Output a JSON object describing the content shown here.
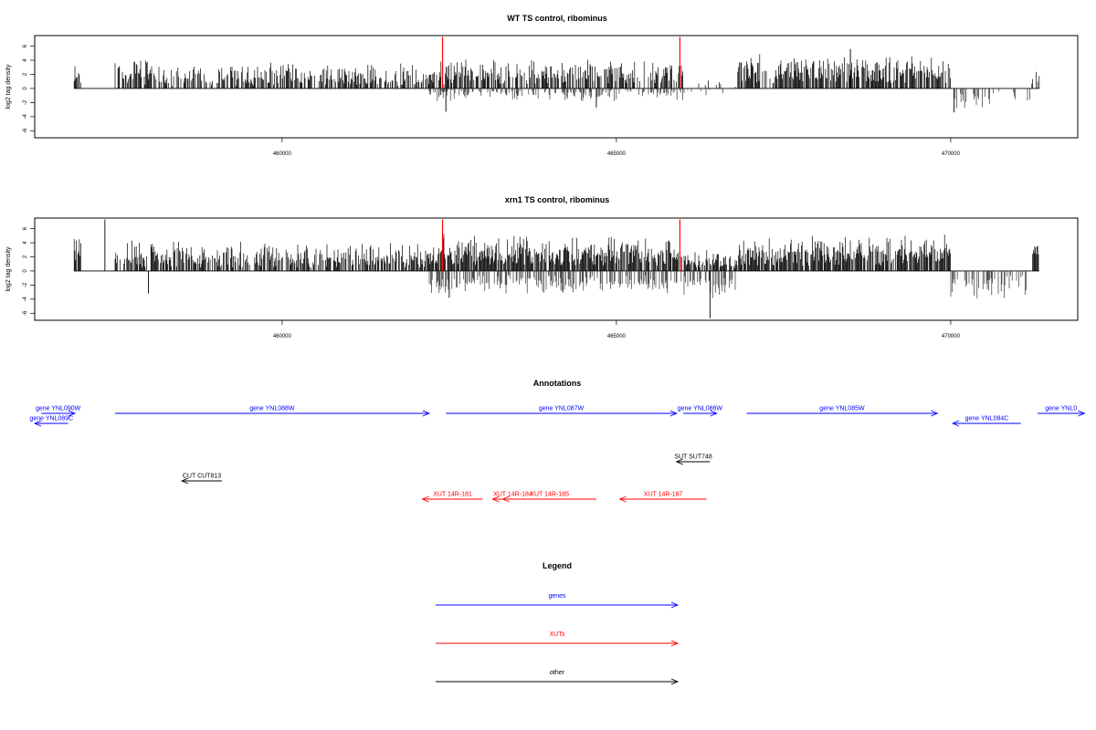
{
  "chart_data": [
    {
      "type": "bar",
      "title": "WT TS control, ribominus",
      "ylabel": "log2 tag density",
      "xlim": [
        456300,
        471900
      ],
      "ylim": [
        -7,
        7.5
      ],
      "yticks": [
        -6,
        -4,
        -2,
        0,
        2,
        4,
        6
      ],
      "xticks": [
        460000,
        465000,
        470000
      ],
      "grid": false,
      "markers": {
        "color": "#ff0000",
        "positions": [
          462400,
          465950
        ],
        "height": 7.3
      },
      "bar_color": "#000000",
      "segments": [
        {
          "start": 456300,
          "end": 457000,
          "base_pos": 1.3,
          "amp_pos": 2.6,
          "base_neg": 0,
          "amp_neg": 0,
          "density": 0.55
        },
        {
          "start": 457000,
          "end": 457500,
          "base_pos": 0,
          "amp_pos": 0,
          "base_neg": 0,
          "amp_neg": 0,
          "density": 0
        },
        {
          "start": 457500,
          "end": 458100,
          "base_pos": 1.8,
          "amp_pos": 2.8,
          "base_neg": 0,
          "amp_neg": 0,
          "density": 0.7
        },
        {
          "start": 458100,
          "end": 462200,
          "base_pos": 1.1,
          "amp_pos": 2.3,
          "base_neg": 0,
          "amp_neg": 0,
          "density": 0.62
        },
        {
          "start": 462200,
          "end": 466000,
          "base_pos": 1.6,
          "amp_pos": 2.5,
          "base_neg": 0.5,
          "amp_neg": 1.3,
          "density": 0.68
        },
        {
          "start": 466000,
          "end": 466800,
          "base_pos": 0.4,
          "amp_pos": 0.9,
          "base_neg": 0.5,
          "amp_neg": 0.6,
          "density": 0.15
        },
        {
          "start": 466800,
          "end": 470000,
          "base_pos": 2.2,
          "amp_pos": 2.3,
          "base_neg": 0,
          "amp_neg": 0,
          "density": 0.78
        },
        {
          "start": 470000,
          "end": 471200,
          "base_pos": 0,
          "amp_pos": 0,
          "base_neg": 1.2,
          "amp_neg": 1.4,
          "density": 0.45
        },
        {
          "start": 471200,
          "end": 471900,
          "base_pos": 1.4,
          "amp_pos": 1.1,
          "base_neg": 0,
          "amp_neg": 0,
          "density": 0.5
        }
      ],
      "peaks": [
        {
          "x": 470050,
          "y": -3.4
        },
        {
          "x": 462450,
          "y": -3.3
        },
        {
          "x": 464700,
          "y": -2.7
        },
        {
          "x": 468500,
          "y": 5.6
        }
      ]
    },
    {
      "type": "bar",
      "title": "xrn1 TS control, ribominus",
      "ylabel": "log2 tag density",
      "xlim": [
        456300,
        471900
      ],
      "ylim": [
        -7,
        7.5
      ],
      "yticks": [
        -6,
        -4,
        -2,
        0,
        2,
        4,
        6
      ],
      "xticks": [
        460000,
        465000,
        470000
      ],
      "grid": false,
      "markers": {
        "color": "#ff0000",
        "positions": [
          462400,
          465950
        ],
        "height": 7.3
      },
      "bar_color": "#000000",
      "segments": [
        {
          "start": 456300,
          "end": 457000,
          "base_pos": 2.6,
          "amp_pos": 3.0,
          "base_neg": 0,
          "amp_neg": 0,
          "density": 0.85
        },
        {
          "start": 457000,
          "end": 457500,
          "base_pos": 0,
          "amp_pos": 0,
          "base_neg": 0,
          "amp_neg": 0,
          "density": 0
        },
        {
          "start": 457500,
          "end": 462200,
          "base_pos": 1.5,
          "amp_pos": 2.6,
          "base_neg": 0,
          "amp_neg": 0,
          "density": 0.7
        },
        {
          "start": 462200,
          "end": 465900,
          "base_pos": 2.0,
          "amp_pos": 2.8,
          "base_neg": 1.4,
          "amp_neg": 1.8,
          "density": 0.85
        },
        {
          "start": 465900,
          "end": 466800,
          "base_pos": 1.2,
          "amp_pos": 1.5,
          "base_neg": 1.4,
          "amp_neg": 2.2,
          "density": 0.7
        },
        {
          "start": 466800,
          "end": 470000,
          "base_pos": 2.2,
          "amp_pos": 2.6,
          "base_neg": 0,
          "amp_neg": 0,
          "density": 0.85
        },
        {
          "start": 470000,
          "end": 471200,
          "base_pos": 0,
          "amp_pos": 0,
          "base_neg": 1.8,
          "amp_neg": 2.2,
          "density": 0.7
        },
        {
          "start": 471200,
          "end": 471900,
          "base_pos": 2.4,
          "amp_pos": 1.4,
          "base_neg": 0,
          "amp_neg": 0,
          "density": 0.75
        }
      ],
      "peaks": [
        {
          "x": 457350,
          "y": 7.3
        },
        {
          "x": 466400,
          "y": -6.7
        },
        {
          "x": 458000,
          "y": -3.2
        },
        {
          "x": 462500,
          "y": -3.8
        },
        {
          "x": 456300,
          "y": -1.8
        }
      ]
    }
  ],
  "annotations": {
    "title": "Annotations",
    "features": [
      {
        "label": "gene YNL090W",
        "color": "#0000ff",
        "start": 456400,
        "end": 456900,
        "track": 0
      },
      {
        "label": "gene YNL089C",
        "color": "#0000ff",
        "start": 456800,
        "end": 456300,
        "track": 1
      },
      {
        "label": "gene YNL088W",
        "color": "#0000ff",
        "start": 457500,
        "end": 462200,
        "track": 0
      },
      {
        "label": "gene YNL087W",
        "color": "#0000ff",
        "start": 462450,
        "end": 465900,
        "track": 0
      },
      {
        "label": "gene YNL086W",
        "color": "#0000ff",
        "start": 466000,
        "end": 466500,
        "track": 0
      },
      {
        "label": "gene YNL085W",
        "color": "#0000ff",
        "start": 466950,
        "end": 469800,
        "track": 0
      },
      {
        "label": "gene YNL084C",
        "color": "#0000ff",
        "start": 471050,
        "end": 470030,
        "track": 1
      },
      {
        "label": "gene YNL0",
        "color": "#0000ff",
        "start": 471300,
        "end": 472000,
        "track": 0
      },
      {
        "label": "SUT SUT748",
        "color": "#000000",
        "start": 466400,
        "end": 465900,
        "track": 2
      },
      {
        "label": "CUT CUT813",
        "color": "#000000",
        "start": 459100,
        "end": 458500,
        "track": 3
      },
      {
        "label": "XUT 14R-181",
        "color": "#ff0000",
        "start": 463000,
        "end": 462100,
        "track": 4
      },
      {
        "label": "XUT 14R-184",
        "color": "#ff0000",
        "start": 463750,
        "end": 463150,
        "track": 4
      },
      {
        "label": "XUT 14R-185",
        "color": "#ff0000",
        "start": 464700,
        "end": 463300,
        "track": 4
      },
      {
        "label": "XUT 14R-187",
        "color": "#ff0000",
        "start": 466350,
        "end": 465050,
        "track": 4
      }
    ]
  },
  "legend": {
    "title": "Legend",
    "entries": [
      {
        "label": "genes",
        "color": "#0000ff"
      },
      {
        "label": "XUTs",
        "color": "#ff0000"
      },
      {
        "label": "other",
        "color": "#000000"
      }
    ]
  }
}
